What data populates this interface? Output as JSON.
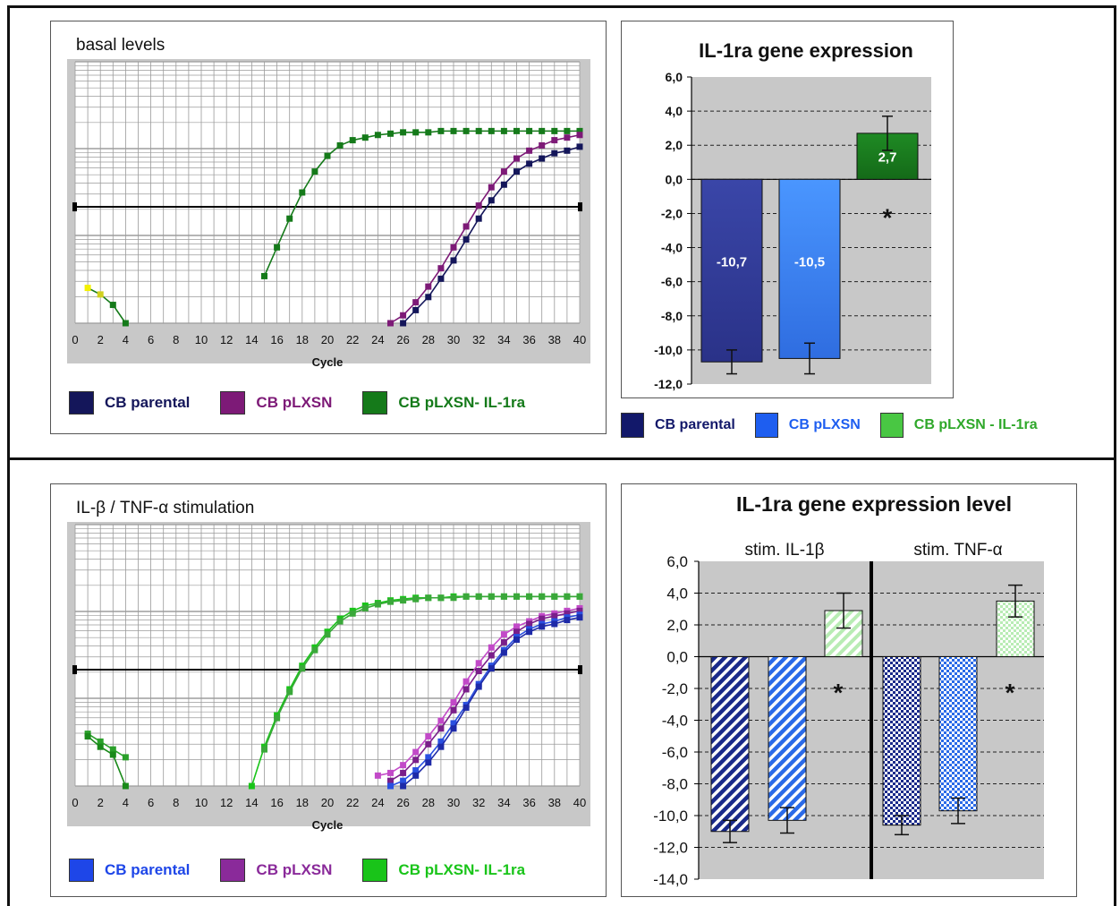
{
  "chart_data": [
    {
      "type": "line",
      "title": "basal levels",
      "xlabel": "Cycle",
      "xlim": [
        0,
        40
      ],
      "x_ticks": [
        "0",
        "2",
        "4",
        "6",
        "8",
        "10",
        "12",
        "14",
        "16",
        "18",
        "20",
        "22",
        "24",
        "26",
        "28",
        "30",
        "32",
        "34",
        "36",
        "38",
        "40"
      ],
      "y_scale": "log",
      "threshold_line": true,
      "grid": true,
      "colors": {
        "grid": "#ffffff",
        "plot_bg": "#ffffff",
        "outer_bg": "#c8c8c8",
        "threshold": "#000000"
      },
      "legend": [
        "CB parental",
        "CB pLXSN",
        "CB pLXSN- IL-1ra"
      ],
      "legend_colors": [
        "#14165a",
        "#7d1a77",
        "#157a1a"
      ],
      "series": [
        {
          "color": "#157a1a",
          "x": [
            15,
            16,
            17,
            18,
            19,
            20,
            21,
            22,
            23,
            24,
            25,
            26,
            27,
            28,
            29,
            30,
            31,
            32,
            33,
            34,
            35,
            36,
            37,
            38,
            39,
            40
          ],
          "y": [
            0.18,
            0.29,
            0.4,
            0.5,
            0.58,
            0.64,
            0.68,
            0.7,
            0.71,
            0.72,
            0.725,
            0.73,
            0.73,
            0.73,
            0.735,
            0.735,
            0.735,
            0.735,
            0.735,
            0.735,
            0.735,
            0.735,
            0.735,
            0.735,
            0.735,
            0.735
          ]
        },
        {
          "color": "#7d1a77",
          "x": [
            25,
            26,
            27,
            28,
            29,
            30,
            31,
            32,
            33,
            34,
            35,
            36,
            37,
            38,
            39,
            40
          ],
          "y": [
            0.0,
            0.03,
            0.08,
            0.14,
            0.21,
            0.29,
            0.37,
            0.45,
            0.52,
            0.58,
            0.63,
            0.66,
            0.68,
            0.7,
            0.71,
            0.72
          ]
        },
        {
          "color": "#14165a",
          "x": [
            26,
            27,
            28,
            29,
            30,
            31,
            32,
            33,
            34,
            35,
            36,
            37,
            38,
            39,
            40
          ],
          "y": [
            0.0,
            0.05,
            0.1,
            0.17,
            0.24,
            0.32,
            0.4,
            0.47,
            0.53,
            0.58,
            0.61,
            0.63,
            0.65,
            0.66,
            0.675
          ]
        },
        {
          "color": "#157a1a",
          "x": [
            1,
            2,
            3,
            4
          ],
          "y": [
            0.135,
            0.11,
            0.07,
            0.0
          ],
          "yellow_first": true
        }
      ]
    },
    {
      "type": "bar",
      "title": "IL-1ra gene expression",
      "categories": [
        "CB parental",
        "CB pLXSN",
        "CB pLXSN - IL-1ra"
      ],
      "values": [
        -10.7,
        -10.5,
        2.7
      ],
      "data_labels": [
        "-10,7",
        "-10,5",
        "2,7"
      ],
      "errors": [
        0.7,
        0.9,
        1.0
      ],
      "significance": [
        "",
        "",
        "*"
      ],
      "ylim": [
        -12,
        6
      ],
      "y_ticks": [
        "6,0",
        "4,0",
        "2,0",
        "0,0",
        "-2,0",
        "-4,0",
        "-6,0",
        "-8,0",
        "-10,0",
        "-12,0"
      ],
      "colors": [
        "#2e3a9a",
        "#3f82f0",
        "#1a7a22"
      ],
      "legend": [
        "CB parental",
        "CB pLXSN",
        "CB pLXSN - IL-1ra"
      ],
      "legend_colors": [
        "#12186a",
        "#1e5ef0",
        "#49c743"
      ],
      "plot_bg": "#c8c8c8"
    },
    {
      "type": "line",
      "title": "IL-β / TNF-α stimulation",
      "xlabel": "Cycle",
      "xlim": [
        0,
        40
      ],
      "x_ticks": [
        "0",
        "2",
        "4",
        "6",
        "8",
        "10",
        "12",
        "14",
        "16",
        "18",
        "20",
        "22",
        "24",
        "26",
        "28",
        "30",
        "32",
        "34",
        "36",
        "38",
        "40"
      ],
      "y_scale": "log",
      "threshold_line": true,
      "grid": true,
      "colors": {
        "grid": "#ffffff",
        "plot_bg": "#ffffff",
        "outer_bg": "#c8c8c8",
        "threshold": "#000000"
      },
      "legend": [
        "CB parental",
        "CB pLXSN",
        "CB pLXSN- IL-1ra"
      ],
      "legend_colors": [
        "#1e46e8",
        "#8a2a9a",
        "#19c419"
      ],
      "series": [
        {
          "color": "#19c419",
          "x": [
            14,
            15,
            16,
            17,
            18,
            19,
            20,
            21,
            22,
            23,
            24,
            25,
            26,
            27,
            28,
            29,
            30,
            31,
            32,
            33,
            34,
            35,
            36,
            37,
            38,
            39,
            40
          ],
          "y": [
            0.0,
            0.15,
            0.27,
            0.37,
            0.46,
            0.53,
            0.59,
            0.64,
            0.67,
            0.69,
            0.7,
            0.71,
            0.715,
            0.72,
            0.72,
            0.72,
            0.725,
            0.725,
            0.725,
            0.725,
            0.725,
            0.725,
            0.725,
            0.725,
            0.725,
            0.725,
            0.725
          ]
        },
        {
          "color": "#3aa83a",
          "x": [
            15,
            16,
            17,
            18,
            19,
            20,
            21,
            22,
            23,
            24,
            25,
            26,
            27,
            28,
            29,
            30,
            31,
            32,
            33,
            34,
            35,
            36,
            37,
            38,
            39,
            40
          ],
          "y": [
            0.14,
            0.26,
            0.36,
            0.45,
            0.52,
            0.58,
            0.63,
            0.66,
            0.68,
            0.695,
            0.705,
            0.71,
            0.715,
            0.72,
            0.72,
            0.72,
            0.725,
            0.725,
            0.725,
            0.725,
            0.725,
            0.725,
            0.725,
            0.725,
            0.725,
            0.725
          ]
        },
        {
          "color": "#c24ac8",
          "x": [
            24,
            25,
            26,
            27,
            28,
            29,
            30,
            31,
            32,
            33,
            34,
            35,
            36,
            37,
            38,
            39,
            40
          ],
          "y": [
            0.04,
            0.05,
            0.08,
            0.13,
            0.19,
            0.25,
            0.32,
            0.4,
            0.47,
            0.53,
            0.58,
            0.61,
            0.63,
            0.65,
            0.66,
            0.67,
            0.68
          ]
        },
        {
          "color": "#7a1f8a",
          "x": [
            25,
            26,
            27,
            28,
            29,
            30,
            31,
            32,
            33,
            34,
            35,
            36,
            37,
            38,
            39,
            40
          ],
          "y": [
            0.02,
            0.05,
            0.1,
            0.16,
            0.22,
            0.29,
            0.37,
            0.44,
            0.5,
            0.55,
            0.59,
            0.62,
            0.64,
            0.65,
            0.66,
            0.67
          ]
        },
        {
          "color": "#2a50e0",
          "x": [
            25,
            26,
            27,
            28,
            29,
            30,
            31,
            32,
            33,
            34,
            35,
            36,
            37,
            38,
            39,
            40
          ],
          "y": [
            0.0,
            0.02,
            0.06,
            0.11,
            0.17,
            0.24,
            0.31,
            0.39,
            0.46,
            0.52,
            0.57,
            0.6,
            0.62,
            0.63,
            0.645,
            0.655
          ]
        },
        {
          "color": "#1e2aa8",
          "x": [
            26,
            27,
            28,
            29,
            30,
            31,
            32,
            33,
            34,
            35,
            36,
            37,
            38,
            39,
            40
          ],
          "y": [
            0.0,
            0.04,
            0.09,
            0.15,
            0.22,
            0.3,
            0.38,
            0.45,
            0.51,
            0.56,
            0.59,
            0.61,
            0.62,
            0.635,
            0.645
          ]
        },
        {
          "color": "#2aa02a",
          "x": [
            1,
            2,
            3,
            4
          ],
          "y": [
            0.2,
            0.17,
            0.14,
            0.11
          ]
        },
        {
          "color": "#1a8a1a",
          "x": [
            1,
            2,
            3,
            4
          ],
          "y": [
            0.19,
            0.15,
            0.12,
            0.0
          ]
        }
      ]
    },
    {
      "type": "bar",
      "title": "IL-1ra gene expression level",
      "groups": [
        "stim. IL-1β",
        "stim. TNF-α"
      ],
      "categories": [
        "CB parental",
        "CB pLXSN",
        "CB pLXSN - IL-1ra"
      ],
      "series": [
        {
          "name": "stim. IL-1β",
          "values": [
            -11.0,
            -10.3,
            2.9
          ],
          "errors": [
            0.7,
            0.8,
            1.1
          ]
        },
        {
          "name": "stim. TNF-α",
          "values": [
            -10.6,
            -9.7,
            3.5
          ],
          "errors": [
            0.6,
            0.8,
            1.0
          ]
        }
      ],
      "significance": [
        "",
        "",
        "*"
      ],
      "ylim": [
        -14,
        6
      ],
      "y_ticks": [
        "6,0",
        "4,0",
        "2,0",
        "0,0",
        "-2,0",
        "-4,0",
        "-6,0",
        "-8,0",
        "-10,0",
        "-12,0",
        "-14,0"
      ],
      "patterns": [
        "stripes-dark",
        "stripes-blue",
        "stripes-light-green"
      ],
      "pattern_colors": [
        "#1a2a8a",
        "#2a6ae8",
        "#9ee29a"
      ],
      "pattern_colors_tnf": [
        "#1a2a8a",
        "#2a6ae8",
        "#9ee29a"
      ],
      "plot_bg": "#c8c8c8"
    }
  ]
}
